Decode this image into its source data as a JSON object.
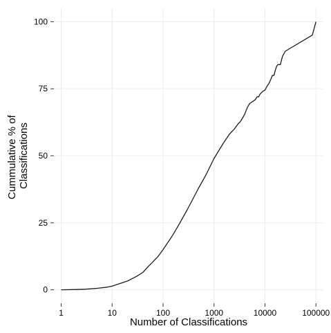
{
  "chart_data": {
    "type": "line",
    "title": "",
    "xlabel": "Number of Classifications",
    "ylabel_lines": [
      "Cummulative % of",
      "Classifications"
    ],
    "x_scale": "log10",
    "xlim": [
      0.72,
      140000
    ],
    "ylim": [
      -5,
      105
    ],
    "x_ticks": [
      1,
      10,
      100,
      1000,
      10000,
      100000
    ],
    "x_tick_labels": [
      "1",
      "10",
      "100",
      "1000",
      "10000",
      "100000"
    ],
    "y_ticks": [
      0,
      25,
      50,
      75,
      100
    ],
    "y_tick_labels": [
      "0",
      "25",
      "50",
      "75",
      "100"
    ],
    "grid": true,
    "legend": "none",
    "line_color": "#1a1a1a",
    "series": [
      {
        "x": [
          1,
          2,
          3,
          5,
          8,
          10,
          15,
          20,
          30,
          40,
          50,
          60,
          80,
          100,
          150,
          200,
          300,
          400,
          500,
          700,
          1000,
          1500,
          2000,
          2500,
          3000,
          3300,
          3600,
          4000,
          4500,
          5000,
          5500,
          6000,
          6500,
          7000,
          7500,
          8000,
          9000,
          10000,
          11000,
          12000,
          13000,
          14000,
          15000,
          16000,
          17000,
          18000,
          20000,
          22000,
          25000,
          85000,
          100000
        ],
        "y": [
          0,
          0.1,
          0.25,
          0.55,
          1.0,
          1.4,
          2.5,
          3.3,
          5.0,
          6.5,
          8.5,
          10,
          12.5,
          15,
          20,
          24,
          30,
          34.5,
          38,
          43,
          49,
          54.5,
          58,
          60,
          62,
          62.8,
          64,
          65.5,
          68,
          69.5,
          70,
          70.5,
          71,
          72,
          72,
          73,
          74,
          74.5,
          76,
          77,
          78.5,
          80,
          80,
          82,
          83.5,
          84,
          84,
          87,
          89,
          95,
          100
        ]
      }
    ]
  }
}
